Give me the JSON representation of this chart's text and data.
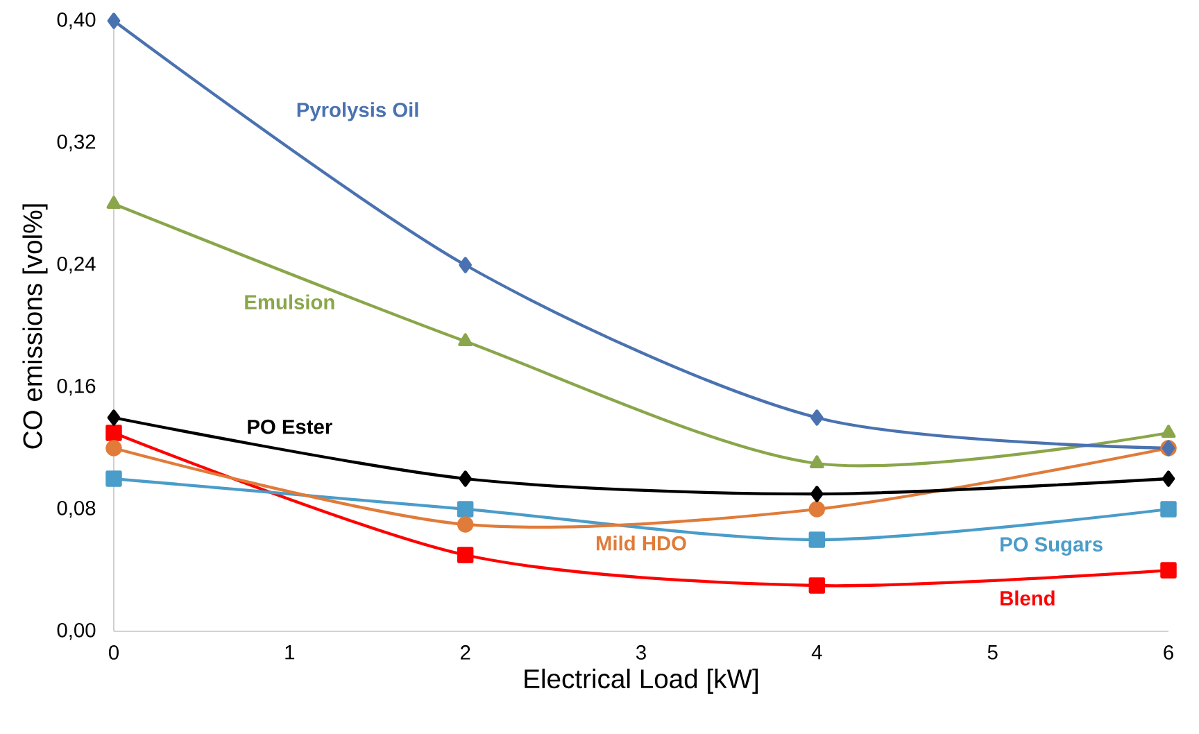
{
  "chart_data": {
    "type": "line",
    "xlabel": "Electrical Load [kW]",
    "ylabel": "CO emissions [vol%]",
    "x": [
      0,
      2,
      4,
      6
    ],
    "xlim": [
      0,
      6
    ],
    "xticks": [
      0,
      1,
      2,
      3,
      4,
      5,
      6
    ],
    "ylim": [
      0,
      0.4
    ],
    "yticks": [
      {
        "value": 0,
        "label": "0,00"
      },
      {
        "value": 0.08,
        "label": "0,08"
      },
      {
        "value": 0.16,
        "label": "0,16"
      },
      {
        "value": 0.24,
        "label": "0,24"
      },
      {
        "value": 0.32,
        "label": "0,32"
      },
      {
        "value": 0.4,
        "label": "0,40"
      }
    ],
    "grid": false,
    "legend": false,
    "line_style": "solid",
    "series": [
      {
        "name": "Pyrolysis Oil",
        "color": "#4a72b0",
        "marker": "diamond",
        "values": [
          0.4,
          0.24,
          0.14,
          0.12
        ]
      },
      {
        "name": "Emulsion",
        "color": "#8aa64a",
        "marker": "triangle",
        "values": [
          0.28,
          0.19,
          0.11,
          0.13
        ]
      },
      {
        "name": "PO Ester",
        "color": "#000000",
        "marker": "diamond",
        "values": [
          0.14,
          0.1,
          0.09,
          0.1
        ]
      },
      {
        "name": "Mild HDO",
        "color": "#e07b39",
        "marker": "circle",
        "values": [
          0.12,
          0.07,
          0.08,
          0.12
        ]
      },
      {
        "name": "PO Sugars",
        "color": "#4a9cc9",
        "marker": "square",
        "values": [
          0.1,
          0.08,
          0.06,
          0.08
        ]
      },
      {
        "name": "Blend",
        "color": "#ff0000",
        "marker": "square",
        "values": [
          0.13,
          0.05,
          0.03,
          0.04
        ]
      }
    ]
  }
}
